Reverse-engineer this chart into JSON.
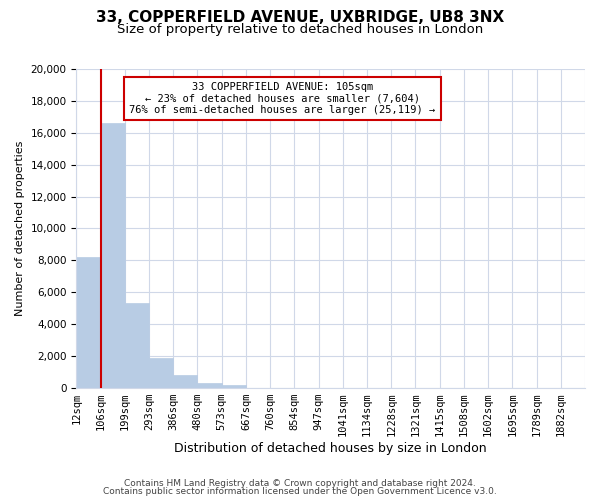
{
  "title": "33, COPPERFIELD AVENUE, UXBRIDGE, UB8 3NX",
  "subtitle": "Size of property relative to detached houses in London",
  "xlabel": "Distribution of detached houses by size in London",
  "ylabel": "Number of detached properties",
  "bin_labels": [
    "12sqm",
    "106sqm",
    "199sqm",
    "293sqm",
    "386sqm",
    "480sqm",
    "573sqm",
    "667sqm",
    "760sqm",
    "854sqm",
    "947sqm",
    "1041sqm",
    "1134sqm",
    "1228sqm",
    "1321sqm",
    "1415sqm",
    "1508sqm",
    "1602sqm",
    "1695sqm",
    "1789sqm",
    "1882sqm"
  ],
  "bar_heights": [
    8200,
    16600,
    5300,
    1850,
    780,
    300,
    170,
    0,
    0,
    0,
    0,
    0,
    0,
    0,
    0,
    0,
    0,
    0,
    0,
    0
  ],
  "bar_color": "#b8cce4",
  "bar_edge_color": "#b8cce4",
  "ylim": [
    0,
    20000
  ],
  "yticks": [
    0,
    2000,
    4000,
    6000,
    8000,
    10000,
    12000,
    14000,
    16000,
    18000,
    20000
  ],
  "annotation_box_text_line1": "33 COPPERFIELD AVENUE: 105sqm",
  "annotation_box_text_line2": "← 23% of detached houses are smaller (7,604)",
  "annotation_box_text_line3": "76% of semi-detached houses are larger (25,119) →",
  "annotation_box_color": "#ffffff",
  "annotation_box_edge_color": "#cc0000",
  "vline_x": 1,
  "vline_color": "#cc0000",
  "grid_color": "#d0d8e8",
  "footnote1": "Contains HM Land Registry data © Crown copyright and database right 2024.",
  "footnote2": "Contains public sector information licensed under the Open Government Licence v3.0.",
  "title_fontsize": 11,
  "subtitle_fontsize": 9.5,
  "xlabel_fontsize": 9,
  "ylabel_fontsize": 8,
  "tick_fontsize": 7.5,
  "footnote_fontsize": 6.5
}
